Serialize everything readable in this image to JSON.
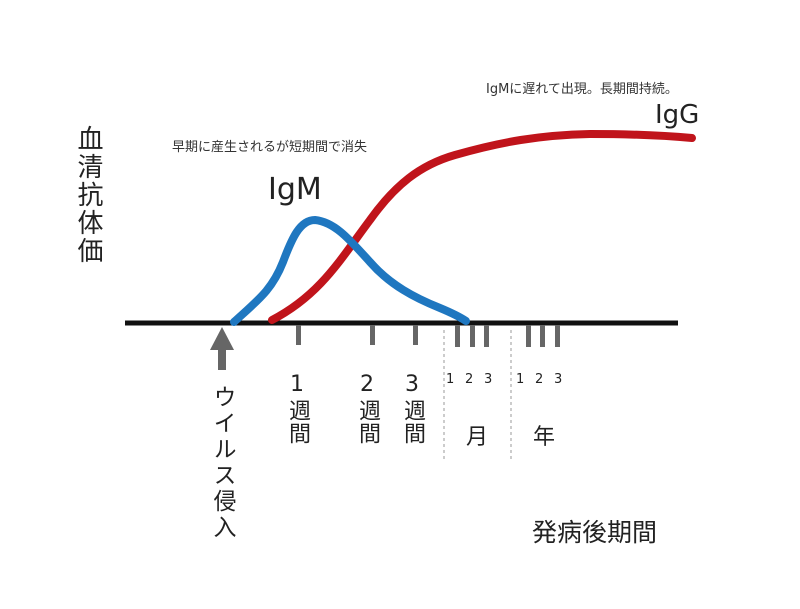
{
  "y_axis_label": "血清抗体価",
  "igm": {
    "name": "IgM",
    "note": "早期に産生されるが短期間で消失",
    "color": "#1f77c0"
  },
  "igg": {
    "name": "IgG",
    "note": "IgMに遅れて出現。長期間持続。",
    "color": "#c0141b"
  },
  "start_marker": {
    "label": "ウイルス侵入",
    "icon": "up-arrow-icon",
    "color": "#666666"
  },
  "time_ticks": {
    "weeks": [
      {
        "num": "1",
        "unit": "週間"
      },
      {
        "num": "2",
        "unit": "週間"
      },
      {
        "num": "3",
        "unit": "週間"
      }
    ],
    "months": {
      "nums": [
        "1",
        "2",
        "3"
      ],
      "unit": "月"
    },
    "years": {
      "nums": [
        "1",
        "2",
        "3"
      ],
      "unit": "年"
    }
  },
  "x_axis_label": "発病後期間",
  "axis_color": "#111111",
  "tick_color": "#666666"
}
